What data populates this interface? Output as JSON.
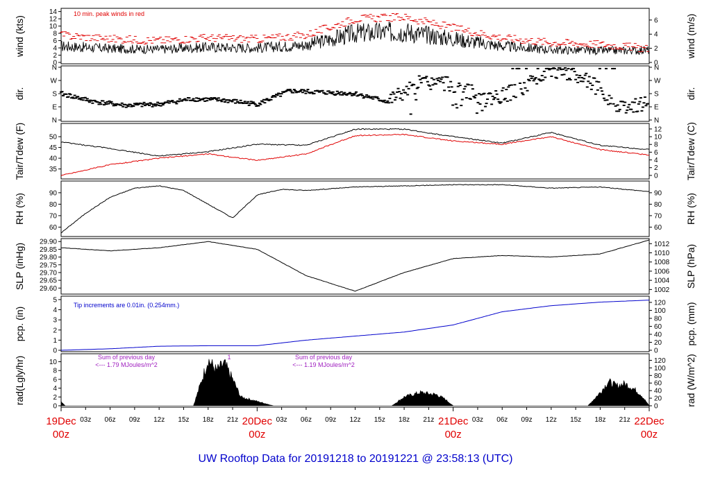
{
  "title": "UW Rooftop Data for 20191218  to  20191221 @ 23:58:13  (UTC)",
  "colors": {
    "title": "#0000cc",
    "peak": "#e00000",
    "dew": "#e00000",
    "pcp": "#0000cc",
    "note": "#a020c0",
    "day": "#e00000"
  },
  "x_axis": {
    "hour_ticks": [
      "03z",
      "06z",
      "09z",
      "12z",
      "15z",
      "18z",
      "21z",
      "03z",
      "06z",
      "09z",
      "12z",
      "15z",
      "18z",
      "21z",
      "03z",
      "06z",
      "09z",
      "12z",
      "15z",
      "18z",
      "21z"
    ],
    "days": [
      {
        "label": "19Dec",
        "sub": "00z"
      },
      {
        "label": "20Dec",
        "sub": "00z"
      },
      {
        "label": "21Dec",
        "sub": "00z"
      },
      {
        "label": "22Dec",
        "sub": "00z"
      }
    ]
  },
  "chart_data": [
    {
      "type": "line",
      "panel": "wind",
      "ylabel": "wind (kts)",
      "ylabel_right": "wind (m/s)",
      "annotation": "10 min. peak winds in red",
      "ylim": [
        0,
        14.5
      ],
      "yticks": [
        "0",
        "2",
        "4",
        "6",
        "8",
        "10",
        "12",
        "14"
      ],
      "ylim_right": [
        0,
        7.46
      ],
      "yticks_right": [
        "0",
        "2",
        "4",
        "6"
      ],
      "x_hours": [
        0,
        6,
        12,
        18,
        24,
        30,
        36,
        42,
        48,
        54,
        60,
        66,
        72
      ],
      "series": [
        {
          "values": [
            4.5,
            3.8,
            3.6,
            4.2,
            4.0,
            4.8,
            8.0,
            8.5,
            6.5,
            4.5,
            3.5,
            3.2,
            3.4
          ],
          "style": "line"
        },
        {
          "values": [
            7.5,
            6.5,
            6.0,
            6.8,
            6.4,
            7.5,
            12.0,
            12.5,
            9.5,
            6.8,
            5.5,
            5.0,
            3.8
          ],
          "style": "dash"
        }
      ]
    },
    {
      "type": "scatter",
      "panel": "dir",
      "ylabel": "dir.",
      "ylabel_right": "dir.",
      "ylim": [
        0,
        4
      ],
      "yticks": [
        "N",
        "E",
        "S",
        "W",
        "N"
      ],
      "yticks_right": [
        "N",
        "E",
        "S",
        "W",
        "N"
      ],
      "x_hours": [
        0,
        4,
        8,
        12,
        16,
        20,
        24,
        28,
        32,
        36,
        40,
        44,
        48,
        52,
        56,
        60,
        64,
        68,
        72
      ],
      "values": [
        2.0,
        1.4,
        1.1,
        1.2,
        1.6,
        1.5,
        1.2,
        2.2,
        2.1,
        2.0,
        1.4,
        2.8,
        2.7,
        1.6,
        2.2,
        3.7,
        3.3,
        1.1,
        1.2
      ]
    },
    {
      "type": "line",
      "panel": "temp",
      "ylabel": "Tair/Tdew (F)",
      "ylabel_right": "Tair/Tdew (C)",
      "ylim": [
        31,
        55.5
      ],
      "yticks": [
        "35",
        "40",
        "45",
        "50"
      ],
      "ylim_right": [
        -0.56,
        13.06
      ],
      "yticks_right": [
        "0",
        "2",
        "4",
        "6",
        "8",
        "10",
        "12"
      ],
      "x_hours": [
        0,
        6,
        12,
        18,
        24,
        30,
        36,
        42,
        48,
        54,
        60,
        66,
        72
      ],
      "series": [
        {
          "values": [
            47.5,
            44.5,
            41.0,
            43.0,
            46.5,
            46.0,
            53.5,
            53.5,
            50.0,
            47.0,
            52.0,
            46.0,
            44.0
          ],
          "style": "line",
          "color": "#000000"
        },
        {
          "values": [
            32.0,
            37.0,
            40.0,
            42.0,
            39.0,
            42.0,
            50.5,
            51.0,
            48.0,
            46.5,
            50.0,
            44.0,
            41.5
          ],
          "style": "line",
          "color": "#e00000"
        }
      ]
    },
    {
      "type": "line",
      "panel": "rh",
      "ylabel": "RH (%)",
      "ylabel_right": "RH (%)",
      "ylim": [
        53,
        99
      ],
      "yticks": [
        "60",
        "70",
        "80",
        "90"
      ],
      "yticks_right": [
        "60",
        "70",
        "80",
        "90"
      ],
      "x_hours": [
        0,
        3,
        6,
        9,
        12,
        15,
        18,
        21,
        24,
        27,
        30,
        36,
        42,
        48,
        54,
        60,
        66,
        72
      ],
      "values": [
        55.0,
        72.0,
        86.0,
        94.0,
        96.0,
        92.0,
        80.0,
        68.0,
        88.0,
        93.0,
        92.0,
        95.0,
        96.0,
        97.0,
        97.0,
        94.0,
        95.0,
        91.0
      ]
    },
    {
      "type": "line",
      "panel": "slp",
      "ylabel": "SLP (inHg)",
      "ylabel_right": "SLP (hPa)",
      "ylim": [
        29.57,
        29.91
      ],
      "yticks": [
        "29.60",
        "29.65",
        "29.70",
        "29.75",
        "29.80",
        "29.85",
        "29.90"
      ],
      "ylim_right": [
        1001.3,
        1012.8
      ],
      "yticks_right": [
        "1002",
        "1004",
        "1006",
        "1008",
        "1010",
        "1012"
      ],
      "x_hours": [
        0,
        6,
        12,
        18,
        24,
        30,
        36,
        42,
        48,
        54,
        60,
        66,
        72
      ],
      "values": [
        29.86,
        29.84,
        29.86,
        29.9,
        29.85,
        29.68,
        29.58,
        29.7,
        29.79,
        29.81,
        29.8,
        29.82,
        29.91
      ]
    },
    {
      "type": "area",
      "panel": "pcp",
      "ylabel": "pcp. (in)",
      "ylabel_right": "pcp. (mm)",
      "annotation": "Tip increments are 0.01in. (0.254mm.)",
      "ylim": [
        0,
        5.2
      ],
      "yticks": [
        "0",
        "1",
        "2",
        "3",
        "4",
        "5"
      ],
      "ylim_right": [
        0,
        132.08
      ],
      "yticks_right": [
        "0",
        "20",
        "40",
        "60",
        "80",
        "100",
        "120"
      ],
      "x_hours": [
        0,
        6,
        12,
        18,
        24,
        30,
        36,
        42,
        48,
        54,
        60,
        66,
        72
      ],
      "values": [
        0.0,
        0.15,
        0.4,
        0.45,
        0.45,
        1.0,
        1.4,
        1.8,
        2.5,
        3.8,
        4.4,
        4.75,
        4.95
      ]
    },
    {
      "type": "area",
      "panel": "rad",
      "ylabel": "rad(Lgly/hr)",
      "ylabel_right": "rad (W/m^2)",
      "ylim": [
        0,
        11.5
      ],
      "yticks": [
        "0",
        "2",
        "4",
        "6",
        "8",
        "10"
      ],
      "ylim_right": [
        0,
        133.7
      ],
      "yticks_right": [
        "0",
        "20",
        "40",
        "60",
        "80",
        "100",
        "120"
      ],
      "notes": [
        {
          "line1": "Sum of previous day",
          "line2": "<--- 1.79 MJoules/m^2"
        },
        {
          "line1": "Sum of previous day",
          "line2": "<--- 1.19 MJoules/m^2"
        }
      ],
      "marker": "1",
      "x_hours": [
        0,
        0.5,
        16.2,
        17,
        18,
        19,
        20,
        21,
        22,
        23,
        24,
        26,
        40.5,
        42,
        44,
        46,
        47,
        48,
        64.5,
        66,
        67,
        68,
        69,
        70,
        71,
        72
      ],
      "values": [
        1.0,
        0,
        0,
        4.5,
        10.5,
        8.0,
        9.5,
        6.0,
        2.0,
        1.5,
        1.0,
        0,
        0,
        2.0,
        3.0,
        2.5,
        1.5,
        0,
        0,
        3.0,
        5.5,
        4.5,
        5.0,
        4.0,
        2.5,
        0
      ]
    }
  ]
}
